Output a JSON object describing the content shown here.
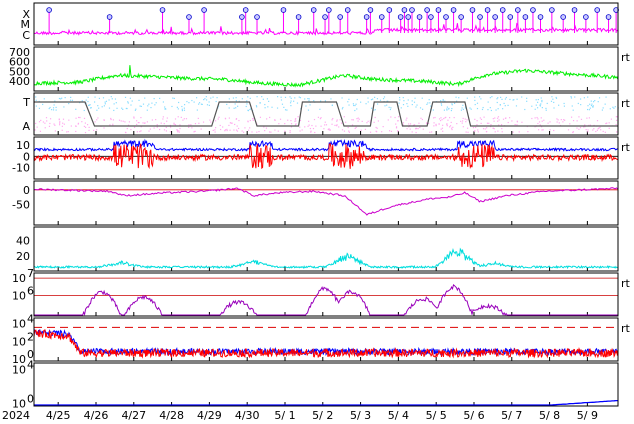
{
  "chart_data": {
    "type": "line",
    "x_year_label": "2024",
    "x_ticks": [
      "4/25",
      "4/26",
      "4/27",
      "4/28",
      "4/29",
      "4/30",
      "5/ 1",
      "5/ 2",
      "5/ 3",
      "5/ 4",
      "5/ 5",
      "5/ 6",
      "5/ 7",
      "5/ 8",
      "5/ 9"
    ],
    "panels": [
      {
        "id": "flares",
        "ytick_labels": [
          "X",
          "M",
          "C"
        ],
        "series": [
          {
            "color": "#ff00ff"
          }
        ],
        "event_markers_x": [
          0.4,
          2.0,
          3.4,
          4.1,
          4.5,
          5.5,
          5.6,
          5.9,
          6.6,
          7.0,
          7.4,
          7.7,
          7.8,
          8.1,
          8.3,
          8.8,
          8.9,
          9.2,
          9.4,
          9.7,
          9.8,
          9.9,
          10.0,
          10.2,
          10.4,
          10.5,
          10.7,
          10.9,
          11.1,
          11.3,
          11.6,
          11.8,
          12.0,
          12.2,
          12.4,
          12.6,
          12.8,
          13.0,
          13.2,
          13.4,
          13.7,
          14.0,
          14.3,
          14.6,
          14.9,
          15.2,
          15.4
        ]
      },
      {
        "id": "speed",
        "ytick_labels": [
          "700",
          "600",
          "500",
          "400"
        ],
        "yticks": [
          700,
          600,
          500,
          400
        ],
        "ylim": [
          300,
          750
        ],
        "series": [
          {
            "color": "#00ee00"
          }
        ],
        "right_marker": "rt"
      },
      {
        "id": "imf-sector",
        "ytick_labels": [
          "T",
          "A"
        ],
        "series": [
          {
            "color": "#88ddff"
          },
          {
            "color": "#ffaaee"
          },
          {
            "color": "#555555"
          }
        ],
        "right_marker": "rt"
      },
      {
        "id": "imf-components",
        "ytick_labels": [
          "10",
          "0",
          "-10"
        ],
        "yticks": [
          10,
          0,
          -10
        ],
        "ylim": [
          -20,
          17
        ],
        "series": [
          {
            "color": "#0000ff"
          },
          {
            "color": "#ff0000"
          }
        ],
        "right_marker": "rt"
      },
      {
        "id": "dst",
        "ytick_labels": [
          "0",
          "-50"
        ],
        "yticks": [
          0,
          -50
        ],
        "ylim": [
          -120,
          30
        ],
        "series": [
          {
            "color": "#cc00cc"
          }
        ]
      },
      {
        "id": "density",
        "ytick_labels": [
          "40",
          "20"
        ],
        "yticks": [
          40,
          20
        ],
        "ylim": [
          0,
          58
        ],
        "series": [
          {
            "color": "#00dddd"
          }
        ]
      },
      {
        "id": "electron-flux",
        "ytick_labels": [
          "10",
          "10"
        ],
        "ytick_exponents": [
          "7",
          "6"
        ],
        "yticks_log10": [
          7,
          6
        ],
        "ylim_log10": [
          4.8,
          7.3
        ],
        "series": [
          {
            "color": "#9900bb"
          }
        ],
        "right_marker": "rt"
      },
      {
        "id": "proton-flux",
        "ytick_labels": [
          "10",
          "10",
          "10"
        ],
        "ytick_exponents": [
          "4",
          "2",
          "0"
        ],
        "yticks_log10": [
          4,
          2,
          0
        ],
        "ylim_log10": [
          -0.2,
          4.6
        ],
        "series": [
          {
            "color": "#0000ff"
          },
          {
            "color": "#ff0000"
          }
        ],
        "right_marker": "rt"
      },
      {
        "id": "high-energy",
        "ytick_labels": [
          "10",
          "10"
        ],
        "ytick_exponents": [
          "4",
          "0"
        ],
        "yticks_log10": [
          4,
          0
        ],
        "ylim_log10": [
          -0.3,
          4.8
        ],
        "series": [
          {
            "color": "#0000ff"
          }
        ]
      }
    ]
  }
}
